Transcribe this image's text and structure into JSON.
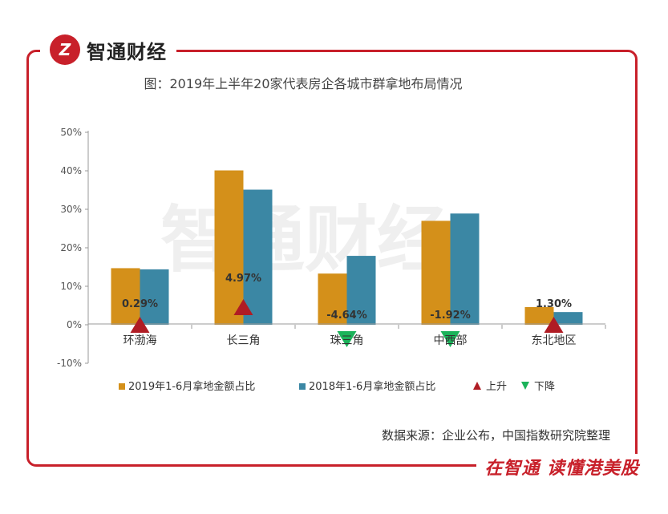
{
  "brand": {
    "name": "智通财经",
    "logo_mark": "Z",
    "slogan": "在智通 读懂港美股",
    "accent": "#c8202a"
  },
  "source": "数据来源：企业公布，中国指数研究院整理",
  "chart_data": {
    "type": "bar",
    "title": "图：2019年上半年20家代表房企各城市群拿地布局情况",
    "categories": [
      "环渤海",
      "长三角",
      "珠三角",
      "中西部",
      "东北地区"
    ],
    "series": [
      {
        "name": "2019年1-6月拿地金额占比",
        "color": "#d4901a",
        "values": [
          14.7,
          40.1,
          13.3,
          27.0,
          4.6
        ]
      },
      {
        "name": "2018年1-6月拿地金额占比",
        "color": "#3b87a4",
        "values": [
          14.4,
          35.1,
          17.9,
          28.9,
          3.3
        ]
      }
    ],
    "changes": {
      "values": [
        0.29,
        4.97,
        -4.64,
        -1.92,
        1.3
      ],
      "labels": [
        "0.29%",
        "4.97%",
        "-4.64%",
        "-1.92%",
        "1.30%"
      ]
    },
    "legend_markers": [
      {
        "name": "上升",
        "color": "#b01c24"
      },
      {
        "name": "下降",
        "color": "#1bb35a"
      }
    ],
    "y_ticks": [
      "50%",
      "40%",
      "30%",
      "20%",
      "10%",
      "0%",
      "-10%"
    ],
    "ylim": [
      -10,
      50
    ],
    "legend_position": "bottom"
  }
}
